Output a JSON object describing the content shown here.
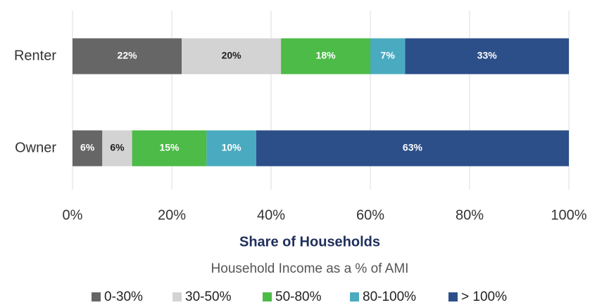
{
  "chart_data": {
    "type": "stacked-bar-horizontal",
    "x_label": "Share of Households",
    "legend_title": "Household Income as a % of AMI",
    "categories": [
      "Renter",
      "Owner"
    ],
    "series": [
      {
        "name": "0-30%",
        "color": "#666666",
        "values": [
          22,
          6
        ],
        "value_labels": [
          "22%",
          "6%"
        ]
      },
      {
        "name": "30-50%",
        "color": "#d3d3d3",
        "values": [
          20,
          6
        ],
        "value_labels": [
          "20%",
          "6%"
        ]
      },
      {
        "name": "50-80%",
        "color": "#4cbb47",
        "values": [
          18,
          15
        ],
        "value_labels": [
          "18%",
          "15%"
        ]
      },
      {
        "name": "80-100%",
        "color": "#4aabc0",
        "values": [
          7,
          10
        ],
        "value_labels": [
          "7%",
          "10%"
        ]
      },
      {
        "name": "> 100%",
        "color": "#2c4f8a",
        "values": [
          33,
          63
        ],
        "value_labels": [
          "33%",
          "63%"
        ]
      }
    ],
    "xlim": [
      0,
      100
    ],
    "xticks": [
      {
        "value": 0,
        "label": "0%"
      },
      {
        "value": 20,
        "label": "20%"
      },
      {
        "value": 40,
        "label": "40%"
      },
      {
        "value": 60,
        "label": "60%"
      },
      {
        "value": 80,
        "label": "80%"
      },
      {
        "value": 100,
        "label": "100%"
      }
    ],
    "grid": true
  }
}
